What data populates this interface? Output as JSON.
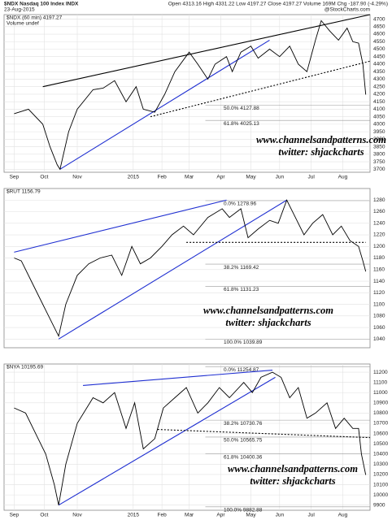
{
  "chart_data": [
    {
      "type": "line",
      "title": "$NDX Nasdaq 100 Index  INDX",
      "subtitle": "23-Aug-2015",
      "header": "Open 4313.16 High 4331.22 Low 4197.27 Close 4197.27 Volume 169M Chg -187.90 (-4.29%)",
      "credit": "@StockCharts.com",
      "legend_text": [
        "$NDX (60 min) 4197.27",
        "Volume undef"
      ],
      "watermark": [
        "www.channelsandpatterns.com",
        "twitter: shjackcharts"
      ],
      "xlim": [
        -7,
        248
      ],
      "ylim": [
        3680,
        4730
      ],
      "grid": true,
      "xticks": [
        {
          "value": 0,
          "label": "Sep"
        },
        {
          "value": 21,
          "label": "Oct"
        },
        {
          "value": 44,
          "label": "Nov"
        },
        {
          "value": 83,
          "label": "2015"
        },
        {
          "value": 103,
          "label": "Feb"
        },
        {
          "value": 122,
          "label": "Mar"
        },
        {
          "value": 144,
          "label": "Apr"
        },
        {
          "value": 165,
          "label": "May"
        },
        {
          "value": 185,
          "label": "Jun"
        },
        {
          "value": 207,
          "label": "Jul"
        },
        {
          "value": 229,
          "label": "Aug"
        }
      ],
      "yticks": [
        3700,
        3750,
        3800,
        3850,
        3900,
        3950,
        4000,
        4050,
        4100,
        4150,
        4200,
        4250,
        4300,
        4350,
        4400,
        4450,
        4500,
        4550,
        4600,
        4650,
        4700
      ],
      "series": [
        {
          "color": "#000000",
          "x": [
            0,
            10,
            20,
            25,
            30,
            32,
            38,
            44,
            55,
            62,
            70,
            78,
            85,
            90,
            98,
            105,
            112,
            122,
            128,
            135,
            140,
            148,
            152,
            158,
            165,
            170,
            178,
            185,
            192,
            198,
            204,
            210,
            214,
            220,
            226,
            232,
            236,
            240,
            243,
            245
          ],
          "values": [
            4070,
            4100,
            4000,
            3850,
            3730,
            3700,
            3950,
            4100,
            4230,
            4240,
            4290,
            4150,
            4250,
            4100,
            4080,
            4200,
            4350,
            4480,
            4400,
            4300,
            4400,
            4450,
            4350,
            4480,
            4520,
            4440,
            4500,
            4450,
            4520,
            4400,
            4350,
            4560,
            4690,
            4620,
            4560,
            4640,
            4550,
            4540,
            4400,
            4197.27
          ]
        }
      ],
      "trendlines": [
        {
          "x": [
            20,
            248
          ],
          "values": [
            4250,
            4730
          ],
          "color": "#000000"
        },
        {
          "x": [
            32,
            178
          ],
          "values": [
            3700,
            4560
          ],
          "color": "#1f2fd1"
        },
        {
          "x": [
            95,
            248
          ],
          "values": [
            4050,
            4420
          ],
          "color": "#000000",
          "dashed": true
        }
      ],
      "levels": [
        {
          "label": "50.0% 4127.88",
          "value": 4127.88
        },
        {
          "label": "61.8% 4025.13",
          "value": 4025.13
        }
      ]
    },
    {
      "type": "line",
      "legend_text": [
        "$RUT 1156.79"
      ],
      "watermark": [
        "www.channelsandpatterns.com",
        "twitter: shjackcharts"
      ],
      "xlim": [
        -7,
        248
      ],
      "ylim": [
        1025,
        1300
      ],
      "grid": true,
      "yticks": [
        1040,
        1060,
        1080,
        1100,
        1120,
        1140,
        1160,
        1180,
        1200,
        1220,
        1240,
        1260,
        1280
      ],
      "series": [
        {
          "color": "#000000",
          "x": [
            0,
            5,
            12,
            20,
            28,
            31,
            36,
            44,
            52,
            60,
            68,
            75,
            82,
            88,
            95,
            103,
            110,
            118,
            125,
            135,
            145,
            150,
            158,
            163,
            170,
            178,
            184,
            190,
            196,
            202,
            208,
            215,
            222,
            228,
            234,
            240,
            243,
            245
          ],
          "values": [
            1180,
            1175,
            1140,
            1100,
            1060,
            1045,
            1100,
            1150,
            1170,
            1180,
            1185,
            1150,
            1200,
            1170,
            1180,
            1200,
            1220,
            1235,
            1220,
            1250,
            1265,
            1250,
            1265,
            1215,
            1230,
            1245,
            1240,
            1280,
            1250,
            1220,
            1240,
            1255,
            1220,
            1235,
            1210,
            1200,
            1175,
            1156.79
          ]
        }
      ],
      "trendlines": [
        {
          "x": [
            0,
            148
          ],
          "values": [
            1190,
            1280
          ],
          "color": "#1f2fd1"
        },
        {
          "x": [
            31,
            190
          ],
          "values": [
            1040,
            1280
          ],
          "color": "#1f2fd1"
        },
        {
          "x": [
            120,
            245
          ],
          "values": [
            1207,
            1207
          ],
          "color": "#000000",
          "dashed": true
        }
      ],
      "levels": [
        {
          "label": "0.0% 1278.96",
          "value": 1278.96
        },
        {
          "label": "38.2% 1169.42",
          "value": 1169.42
        },
        {
          "label": "61.8% 1131.23",
          "value": 1131.23
        },
        {
          "label": "100.0% 1039.89",
          "value": 1039.89
        }
      ]
    },
    {
      "type": "line",
      "legend_text": [
        "$NYA 10195.69"
      ],
      "watermark": [
        "www.channelsandpatterns.com",
        "twitter: shjackcharts"
      ],
      "xlim": [
        -7,
        248
      ],
      "ylim": [
        9850,
        11280
      ],
      "grid": true,
      "xticks": [
        {
          "value": 0,
          "label": "Sep"
        },
        {
          "value": 21,
          "label": "Oct"
        },
        {
          "value": 44,
          "label": "Nov"
        },
        {
          "value": 83,
          "label": "2015"
        },
        {
          "value": 103,
          "label": "Feb"
        },
        {
          "value": 122,
          "label": "Mar"
        },
        {
          "value": 144,
          "label": "Apr"
        },
        {
          "value": 165,
          "label": "May"
        },
        {
          "value": 185,
          "label": "Jun"
        },
        {
          "value": 207,
          "label": "Jul"
        },
        {
          "value": 229,
          "label": "Aug"
        }
      ],
      "yticks": [
        9900,
        10000,
        10100,
        10200,
        10300,
        10400,
        10500,
        10600,
        10700,
        10800,
        10900,
        11000,
        11100,
        11200
      ],
      "series": [
        {
          "color": "#000000",
          "x": [
            0,
            8,
            15,
            22,
            28,
            31,
            36,
            44,
            55,
            62,
            70,
            78,
            84,
            90,
            98,
            104,
            112,
            120,
            128,
            135,
            143,
            150,
            160,
            166,
            172,
            180,
            186,
            192,
            198,
            204,
            210,
            218,
            224,
            230,
            236,
            240,
            242,
            245
          ],
          "values": [
            10850,
            10800,
            10600,
            10400,
            10100,
            9900,
            10300,
            10700,
            10950,
            10900,
            11000,
            10650,
            10900,
            10450,
            10550,
            10850,
            10950,
            11050,
            10800,
            10900,
            11050,
            10950,
            11100,
            11000,
            11150,
            11200,
            11150,
            10950,
            11050,
            10750,
            10800,
            10900,
            10650,
            10750,
            10650,
            10650,
            10400,
            10195.69
          ]
        }
      ],
      "trendlines": [
        {
          "x": [
            48,
            180
          ],
          "values": [
            11070,
            11220
          ],
          "color": "#1f2fd1"
        },
        {
          "x": [
            31,
            182
          ],
          "values": [
            9900,
            11150
          ],
          "color": "#1f2fd1"
        },
        {
          "x": [
            100,
            248
          ],
          "values": [
            10640,
            10560
          ],
          "color": "#000000",
          "dashed": true
        }
      ],
      "levels": [
        {
          "label": "0.0% 11254.87",
          "value": 11254.87
        },
        {
          "label": "38.2% 10730.76",
          "value": 10730.76
        },
        {
          "label": "50.0% 10565.75",
          "value": 10565.75
        },
        {
          "label": "61.8% 10400.36",
          "value": 10400.36
        },
        {
          "label": "100.0% 9882.88",
          "value": 9882.88
        }
      ]
    }
  ]
}
